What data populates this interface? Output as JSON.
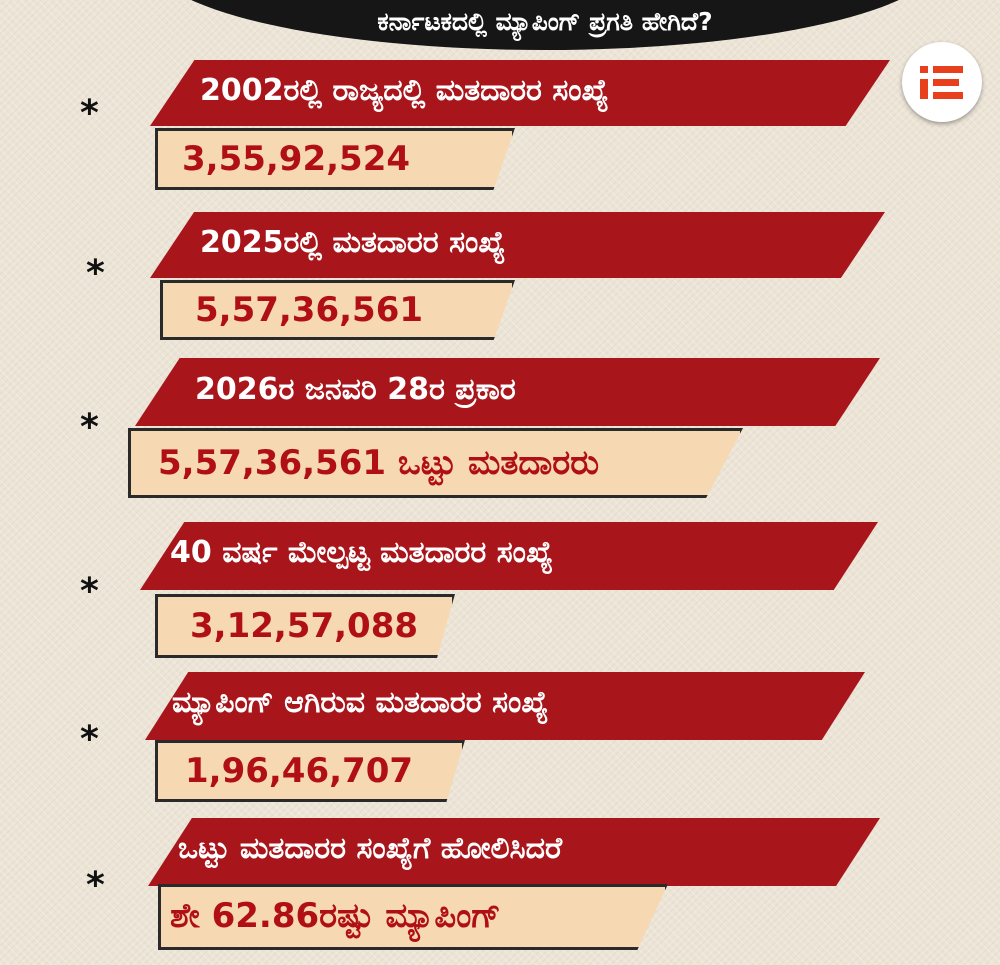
{
  "title": "ಕರ್ನಾಟಕದಲ್ಲಿ ಮ್ಯಾಪಿಂಗ್ ಪ್ರಗತಿ ಹೇಗಿದೆ?",
  "logo_icon": "e-letter-logo-icon",
  "colors": {
    "band_red": "#a8161c",
    "value_cream": "#f6d8b2",
    "value_text": "#b01015",
    "title_bg": "#161616",
    "logo_orange": "#e8401c"
  },
  "items": [
    {
      "label": "2002ರಲ್ಲಿ ರಾಜ್ಯದಲ್ಲಿ ಮತದಾರರ ಸಂಖ್ಯೆ",
      "value": "3,55,92,524"
    },
    {
      "label": "2025ರಲ್ಲಿ ಮತದಾರರ ಸಂಖ್ಯೆ",
      "value": "5,57,36,561"
    },
    {
      "label": "2026ರ ಜನವರಿ 28ರ ಪ್ರಕಾರ",
      "value": "5,57,36,561 ಒಟ್ಟು ಮತದಾರರು"
    },
    {
      "label": "40 ವರ್ಷ ಮೇಲ್ಪಟ್ಟ ಮತದಾರರ ಸಂಖ್ಯೆ",
      "value": "3,12,57,088"
    },
    {
      "label": "ಮ್ಯಾಪಿಂಗ್ ಆಗಿರುವ ಮತದಾರರ ಸಂಖ್ಯೆ",
      "value": "1,96,46,707"
    },
    {
      "label": "ಒಟ್ಟು ಮತದಾರರ ಸಂಖ್ಯೆಗೆ ಹೋಲಿಸಿದರೆ",
      "value": "ಶೇ 62.86ರಷ್ಟು ಮ್ಯಾಪಿಂಗ್"
    }
  ]
}
